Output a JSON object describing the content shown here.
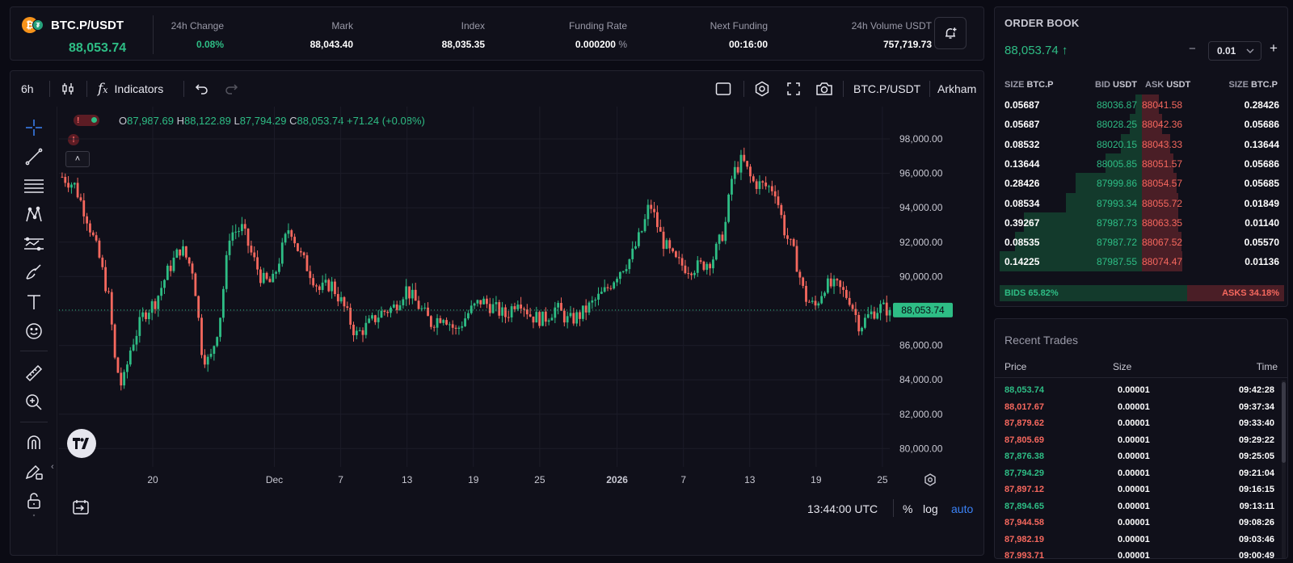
{
  "header": {
    "symbol": "BTC.P/USDT",
    "last_price": "88,053.74",
    "stats": [
      {
        "label": "24h Change",
        "value": "0.08%",
        "color": "#2ebd85"
      },
      {
        "label": "Mark",
        "value": "88,043.40",
        "color": "#ffffff"
      },
      {
        "label": "Index",
        "value": "88,035.35",
        "color": "#ffffff"
      },
      {
        "label": "Funding Rate",
        "value": "0.000200",
        "unit": "%",
        "color": "#ffffff"
      },
      {
        "label": "Next Funding",
        "value": "00:16:00",
        "color": "#ffffff"
      },
      {
        "label": "24h Volume USDT",
        "value": "757,719.73",
        "color": "#ffffff"
      }
    ]
  },
  "toolbar": {
    "interval": "6h",
    "indicators_label": "Indicators",
    "symbol_label": "BTC.P/USDT",
    "exchange_label": "Arkham"
  },
  "ohlc": {
    "o_key": "O",
    "o": "87,987.69",
    "h_key": "H",
    "h": "88,122.89",
    "l_key": "L",
    "l": "87,794.29",
    "c_key": "C",
    "c": "88,053.74",
    "change": "+71.24 (+0.08%)"
  },
  "alert_glyph": "!",
  "chart_data": {
    "type": "candlestick",
    "y_ticks": [
      "98,000.00",
      "96,000.00",
      "94,000.00",
      "92,000.00",
      "90,000.00",
      "88,000.00",
      "86,000.00",
      "84,000.00",
      "82,000.00",
      "80,000.00"
    ],
    "ylim": [
      79500,
      99000
    ],
    "x_ticks": [
      {
        "label": "20",
        "day": 3
      },
      {
        "label": "Dec",
        "day": 14,
        "bold": true
      },
      {
        "label": "7",
        "day": 20
      },
      {
        "label": "13",
        "day": 26
      },
      {
        "label": "19",
        "day": 32
      },
      {
        "label": "25",
        "day": 38
      },
      {
        "label": "2026",
        "day": 45,
        "bold": true
      },
      {
        "label": "7",
        "day": 51
      },
      {
        "label": "13",
        "day": 57
      },
      {
        "label": "19",
        "day": 63
      },
      {
        "label": "25",
        "day": 69
      }
    ],
    "current_price_label": "88,053.74",
    "current_price": 88053.74,
    "trend": [
      [
        0,
        95800
      ],
      [
        1,
        95300
      ],
      [
        2,
        93400
      ],
      [
        3,
        91000
      ],
      [
        3.8,
        88500
      ],
      [
        4.2,
        85200
      ],
      [
        4.8,
        83500
      ],
      [
        5.5,
        85900
      ],
      [
        6.5,
        87800
      ],
      [
        7.5,
        88600
      ],
      [
        8.5,
        90400
      ],
      [
        9.5,
        91700
      ],
      [
        10.5,
        90300
      ],
      [
        11.2,
        85500
      ],
      [
        11.8,
        85000
      ],
      [
        12.6,
        87500
      ],
      [
        13.4,
        92500
      ],
      [
        14.4,
        92800
      ],
      [
        15.2,
        91200
      ],
      [
        16,
        89800
      ],
      [
        16.8,
        89600
      ],
      [
        17.6,
        91600
      ],
      [
        18.2,
        93000
      ],
      [
        19,
        91300
      ],
      [
        19.8,
        90300
      ],
      [
        20.6,
        89200
      ],
      [
        21.5,
        89600
      ],
      [
        22.5,
        88300
      ],
      [
        23.5,
        86600
      ],
      [
        24.5,
        87200
      ],
      [
        25.5,
        87900
      ],
      [
        26.5,
        88200
      ],
      [
        27.5,
        89300
      ],
      [
        28.5,
        88300
      ],
      [
        29.5,
        87300
      ],
      [
        30.5,
        87800
      ],
      [
        31.5,
        86800
      ],
      [
        32.5,
        87900
      ],
      [
        33.5,
        88600
      ],
      [
        34.5,
        88200
      ],
      [
        35.5,
        87700
      ],
      [
        36.5,
        88800
      ],
      [
        37.5,
        87700
      ],
      [
        38.5,
        87500
      ],
      [
        39.5,
        88200
      ],
      [
        40.5,
        87400
      ],
      [
        41.5,
        87800
      ],
      [
        42.5,
        88500
      ],
      [
        43.5,
        89200
      ],
      [
        44.5,
        90300
      ],
      [
        45.5,
        91100
      ],
      [
        46.5,
        92900
      ],
      [
        47,
        94300
      ],
      [
        48,
        92100
      ],
      [
        49,
        90900
      ],
      [
        50,
        90500
      ],
      [
        51,
        90600
      ],
      [
        52,
        91000
      ],
      [
        53,
        92800
      ],
      [
        53.6,
        95900
      ],
      [
        54.4,
        96800
      ],
      [
        55.2,
        95500
      ],
      [
        56,
        95300
      ],
      [
        57,
        95100
      ],
      [
        57.8,
        92600
      ],
      [
        58.6,
        91200
      ],
      [
        59.4,
        88800
      ],
      [
        60.2,
        88200
      ],
      [
        61,
        89500
      ],
      [
        62,
        89400
      ],
      [
        63,
        88700
      ],
      [
        63.8,
        87100
      ],
      [
        64.6,
        87800
      ],
      [
        65.4,
        88200
      ],
      [
        66.2,
        88050
      ]
    ]
  },
  "bottom": {
    "time": "13:44:00 UTC",
    "pct": "%",
    "log": "log",
    "auto": "auto"
  },
  "orderbook": {
    "title": "ORDER BOOK",
    "price": "88,053.74",
    "arrow": "↑",
    "step": "0.01",
    "minus": "−",
    "plus": "+",
    "headers": {
      "size_l": "SIZE",
      "size_l_unit": "BTC.P",
      "bid": "BID",
      "bid_unit": "USDT",
      "ask": "ASK",
      "ask_unit": "USDT",
      "size_r": "SIZE",
      "size_r_unit": "BTC.P"
    },
    "rows": [
      {
        "bid_size": "0.05687",
        "bid": "88036.87",
        "ask": "88041.58",
        "ask_size": "0.28426"
      },
      {
        "bid_size": "0.05687",
        "bid": "88028.25",
        "ask": "88042.36",
        "ask_size": "0.05686"
      },
      {
        "bid_size": "0.08532",
        "bid": "88020.15",
        "ask": "88043.33",
        "ask_size": "0.13644"
      },
      {
        "bid_size": "0.13644",
        "bid": "88005.85",
        "ask": "88051.57",
        "ask_size": "0.05686"
      },
      {
        "bid_size": "0.28426",
        "bid": "87999.86",
        "ask": "88054.57",
        "ask_size": "0.05685"
      },
      {
        "bid_size": "0.08534",
        "bid": "87993.34",
        "ask": "88055.72",
        "ask_size": "0.01849"
      },
      {
        "bid_size": "0.39267",
        "bid": "87987.73",
        "ask": "88063.35",
        "ask_size": "0.01140"
      },
      {
        "bid_size": "0.08535",
        "bid": "87987.72",
        "ask": "88067.52",
        "ask_size": "0.05570"
      },
      {
        "bid_size": "0.14225",
        "bid": "87987.55",
        "ask": "88074.47",
        "ask_size": "0.01136"
      }
    ],
    "bids_label": "BIDS 65.82%",
    "asks_label": "ASKS 34.18%",
    "bids_fraction": 0.6582
  },
  "recent_trades": {
    "title": "Recent Trades",
    "headers": {
      "price": "Price",
      "size": "Size",
      "time": "Time"
    },
    "rows": [
      {
        "price": "88,053.74",
        "size": "0.00001",
        "time": "09:42:28",
        "side": "buy"
      },
      {
        "price": "88,017.67",
        "size": "0.00001",
        "time": "09:37:34",
        "side": "sell"
      },
      {
        "price": "87,879.62",
        "size": "0.00001",
        "time": "09:33:40",
        "side": "sell"
      },
      {
        "price": "87,805.69",
        "size": "0.00001",
        "time": "09:29:22",
        "side": "sell"
      },
      {
        "price": "87,876.38",
        "size": "0.00001",
        "time": "09:25:05",
        "side": "buy"
      },
      {
        "price": "87,794.29",
        "size": "0.00001",
        "time": "09:21:04",
        "side": "buy"
      },
      {
        "price": "87,897.12",
        "size": "0.00001",
        "time": "09:16:15",
        "side": "sell"
      },
      {
        "price": "87,894.65",
        "size": "0.00001",
        "time": "09:13:11",
        "side": "buy"
      },
      {
        "price": "87,944.58",
        "size": "0.00001",
        "time": "09:08:26",
        "side": "sell"
      },
      {
        "price": "87,982.19",
        "size": "0.00001",
        "time": "09:03:46",
        "side": "sell"
      },
      {
        "price": "87,993.71",
        "size": "0.00001",
        "time": "09:00:49",
        "side": "sell"
      }
    ]
  },
  "colors": {
    "up": "#2ebd85",
    "down": "#f6685e",
    "accent": "#3b82f6"
  }
}
